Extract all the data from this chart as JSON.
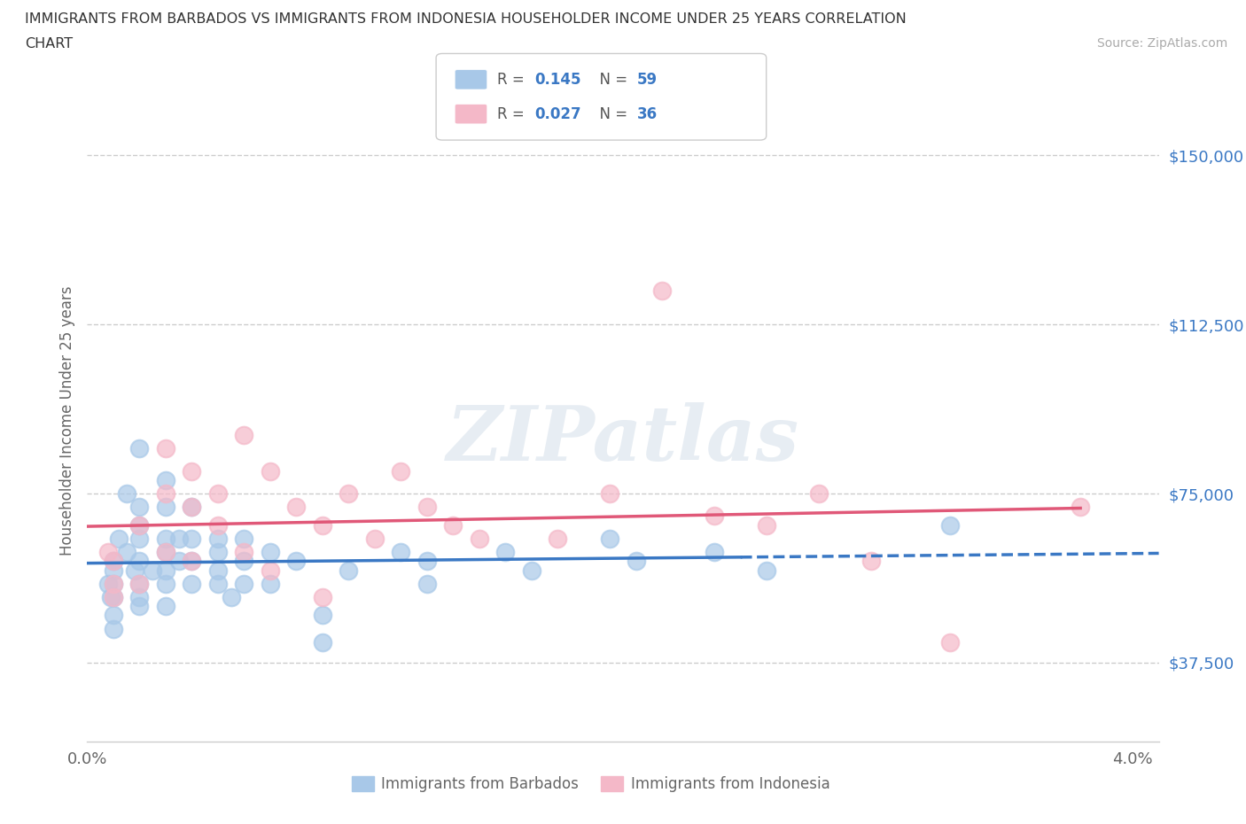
{
  "title_line1": "IMMIGRANTS FROM BARBADOS VS IMMIGRANTS FROM INDONESIA HOUSEHOLDER INCOME UNDER 25 YEARS CORRELATION",
  "title_line2": "CHART",
  "source": "Source: ZipAtlas.com",
  "ylabel": "Householder Income Under 25 years",
  "xlim": [
    0.0,
    0.041
  ],
  "ylim": [
    20000,
    162500
  ],
  "xticks": [
    0.0,
    0.01,
    0.02,
    0.03,
    0.04
  ],
  "xtick_labels": [
    "0.0%",
    "",
    "",
    "",
    "4.0%"
  ],
  "ytick_positions": [
    37500,
    75000,
    112500,
    150000
  ],
  "ytick_labels": [
    "$37,500",
    "$75,000",
    "$112,500",
    "$150,000"
  ],
  "color_barbados": "#a8c8e8",
  "color_indonesia": "#f4b8c8",
  "trendline_barbados_color": "#3a78c4",
  "trendline_indonesia_color": "#e05878",
  "watermark": "ZIPatlas",
  "hgrid_color": "#cccccc",
  "barbados_x": [
    0.0008,
    0.0009,
    0.001,
    0.001,
    0.001,
    0.001,
    0.001,
    0.001,
    0.0012,
    0.0015,
    0.0015,
    0.0018,
    0.002,
    0.002,
    0.002,
    0.002,
    0.002,
    0.002,
    0.002,
    0.002,
    0.0025,
    0.003,
    0.003,
    0.003,
    0.003,
    0.003,
    0.003,
    0.003,
    0.0035,
    0.0035,
    0.004,
    0.004,
    0.004,
    0.004,
    0.005,
    0.005,
    0.005,
    0.005,
    0.0055,
    0.006,
    0.006,
    0.006,
    0.007,
    0.007,
    0.008,
    0.009,
    0.009,
    0.01,
    0.012,
    0.013,
    0.013,
    0.016,
    0.017,
    0.02,
    0.021,
    0.024,
    0.026,
    0.033
  ],
  "barbados_y": [
    55000,
    52000,
    60000,
    58000,
    55000,
    52000,
    48000,
    45000,
    65000,
    75000,
    62000,
    58000,
    85000,
    72000,
    68000,
    65000,
    60000,
    55000,
    52000,
    50000,
    58000,
    78000,
    72000,
    65000,
    62000,
    58000,
    55000,
    50000,
    65000,
    60000,
    72000,
    65000,
    60000,
    55000,
    65000,
    62000,
    58000,
    55000,
    52000,
    65000,
    60000,
    55000,
    62000,
    55000,
    60000,
    48000,
    42000,
    58000,
    62000,
    60000,
    55000,
    62000,
    58000,
    65000,
    60000,
    62000,
    58000,
    68000
  ],
  "indonesia_x": [
    0.0008,
    0.001,
    0.001,
    0.001,
    0.002,
    0.002,
    0.003,
    0.003,
    0.003,
    0.004,
    0.004,
    0.004,
    0.005,
    0.005,
    0.006,
    0.006,
    0.007,
    0.007,
    0.008,
    0.009,
    0.009,
    0.01,
    0.011,
    0.012,
    0.013,
    0.014,
    0.015,
    0.018,
    0.02,
    0.022,
    0.024,
    0.026,
    0.028,
    0.03,
    0.033,
    0.038
  ],
  "indonesia_y": [
    62000,
    60000,
    55000,
    52000,
    68000,
    55000,
    85000,
    75000,
    62000,
    80000,
    72000,
    60000,
    75000,
    68000,
    88000,
    62000,
    80000,
    58000,
    72000,
    68000,
    52000,
    75000,
    65000,
    80000,
    72000,
    68000,
    65000,
    65000,
    75000,
    120000,
    70000,
    68000,
    75000,
    60000,
    42000,
    72000
  ]
}
